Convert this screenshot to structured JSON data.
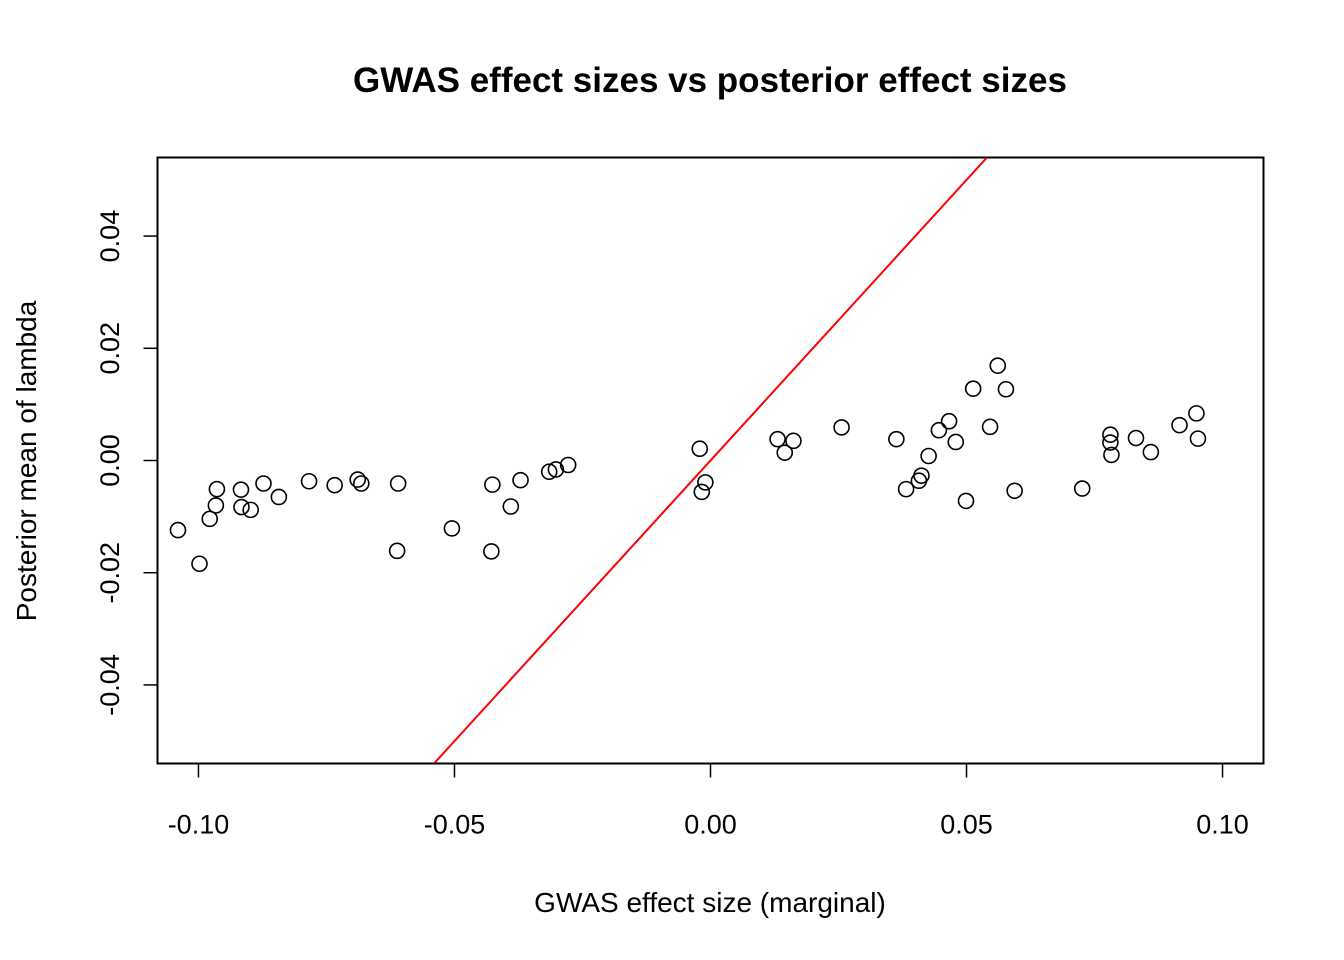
{
  "chart_data": {
    "type": "scatter",
    "title": "GWAS effect sizes vs posterior effect sizes",
    "xlabel": "GWAS effect size (marginal)",
    "ylabel": "Posterior mean of lambda",
    "xlim": [
      -0.108,
      0.108
    ],
    "ylim": [
      -0.054,
      0.054
    ],
    "x_ticks": [
      {
        "value": -0.1,
        "label": "-0.10"
      },
      {
        "value": -0.05,
        "label": "-0.05"
      },
      {
        "value": 0.0,
        "label": "0.00"
      },
      {
        "value": 0.05,
        "label": "0.05"
      },
      {
        "value": 0.1,
        "label": "0.10"
      }
    ],
    "y_ticks": [
      {
        "value": -0.04,
        "label": "-0.04"
      },
      {
        "value": -0.02,
        "label": "-0.02"
      },
      {
        "value": 0.0,
        "label": "0.00"
      },
      {
        "value": 0.02,
        "label": "0.02"
      },
      {
        "value": 0.04,
        "label": "0.04"
      }
    ],
    "reference_line": {
      "slope": 1,
      "intercept": 0,
      "color": "#ff0000"
    },
    "point_color": "#000000",
    "grid": false,
    "legend": "none",
    "points": [
      {
        "x": -0.104,
        "y": -0.0124
      },
      {
        "x": -0.0998,
        "y": -0.0184
      },
      {
        "x": -0.0978,
        "y": -0.0104
      },
      {
        "x": -0.0966,
        "y": -0.008
      },
      {
        "x": -0.0964,
        "y": -0.0051
      },
      {
        "x": -0.0917,
        "y": -0.0052
      },
      {
        "x": -0.0916,
        "y": -0.0083
      },
      {
        "x": -0.0898,
        "y": -0.0088
      },
      {
        "x": -0.0873,
        "y": -0.0041
      },
      {
        "x": -0.0843,
        "y": -0.0065
      },
      {
        "x": -0.0784,
        "y": -0.0037
      },
      {
        "x": -0.0734,
        "y": -0.0044
      },
      {
        "x": -0.0689,
        "y": -0.0034
      },
      {
        "x": -0.0682,
        "y": -0.0041
      },
      {
        "x": -0.061,
        "y": -0.0041
      },
      {
        "x": -0.0612,
        "y": -0.0161
      },
      {
        "x": -0.0505,
        "y": -0.0121
      },
      {
        "x": -0.0426,
        "y": -0.0043
      },
      {
        "x": -0.0428,
        "y": -0.0162
      },
      {
        "x": -0.039,
        "y": -0.0082
      },
      {
        "x": -0.0371,
        "y": -0.0035
      },
      {
        "x": -0.0315,
        "y": -0.002
      },
      {
        "x": -0.0302,
        "y": -0.0016
      },
      {
        "x": -0.0278,
        "y": -0.0008
      },
      {
        "x": -0.0021,
        "y": 0.0021
      },
      {
        "x": -0.0017,
        "y": -0.0056
      },
      {
        "x": -0.001,
        "y": -0.0039
      },
      {
        "x": 0.0131,
        "y": 0.0038
      },
      {
        "x": 0.0145,
        "y": 0.0014
      },
      {
        "x": 0.0162,
        "y": 0.0035
      },
      {
        "x": 0.0256,
        "y": 0.0059
      },
      {
        "x": 0.0363,
        "y": 0.0038
      },
      {
        "x": 0.0382,
        "y": -0.0051
      },
      {
        "x": 0.0407,
        "y": -0.0036
      },
      {
        "x": 0.0412,
        "y": -0.0027
      },
      {
        "x": 0.0426,
        "y": 0.0008
      },
      {
        "x": 0.0446,
        "y": 0.0054
      },
      {
        "x": 0.0466,
        "y": 0.007
      },
      {
        "x": 0.0479,
        "y": 0.0033
      },
      {
        "x": 0.0499,
        "y": -0.0072
      },
      {
        "x": 0.0513,
        "y": 0.0128
      },
      {
        "x": 0.0546,
        "y": 0.006
      },
      {
        "x": 0.0561,
        "y": 0.0169
      },
      {
        "x": 0.0577,
        "y": 0.0127
      },
      {
        "x": 0.0594,
        "y": -0.0054
      },
      {
        "x": 0.0726,
        "y": -0.005
      },
      {
        "x": 0.0781,
        "y": 0.0046
      },
      {
        "x": 0.0781,
        "y": 0.0032
      },
      {
        "x": 0.0783,
        "y": 0.001
      },
      {
        "x": 0.0831,
        "y": 0.004
      },
      {
        "x": 0.086,
        "y": 0.0015
      },
      {
        "x": 0.0916,
        "y": 0.0063
      },
      {
        "x": 0.0949,
        "y": 0.0084
      },
      {
        "x": 0.0952,
        "y": 0.0039
      }
    ]
  }
}
